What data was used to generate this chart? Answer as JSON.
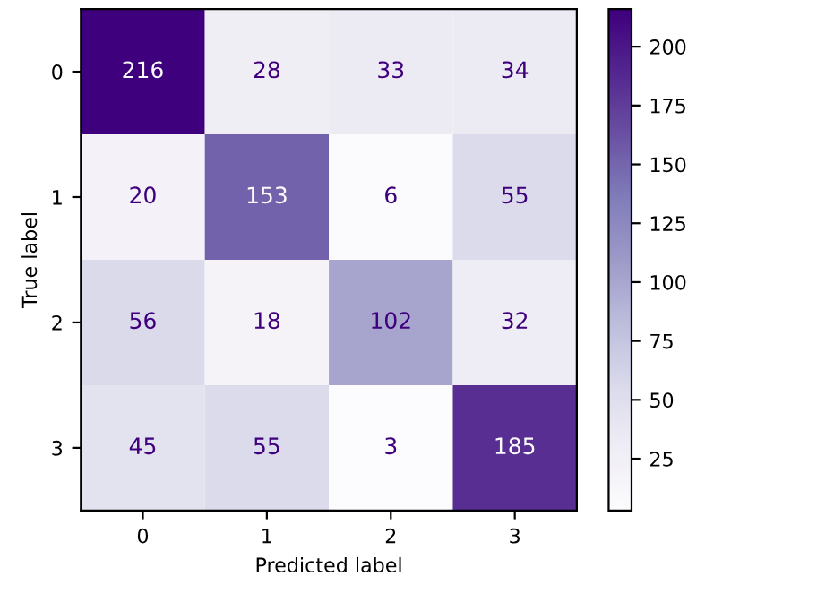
{
  "chart_data": {
    "type": "heatmap",
    "xlabel": "Predicted label",
    "ylabel": "True label",
    "categories": [
      "0",
      "1",
      "2",
      "3"
    ],
    "y_categories": [
      "0",
      "1",
      "2",
      "3"
    ],
    "cells": [
      [
        216,
        28,
        33,
        34
      ],
      [
        20,
        153,
        6,
        55
      ],
      [
        56,
        18,
        102,
        32
      ],
      [
        45,
        55,
        3,
        185
      ]
    ],
    "clim": [
      3,
      216
    ],
    "cticks": [
      25,
      50,
      75,
      100,
      125,
      150,
      175,
      200
    ],
    "data_labels": true
  }
}
